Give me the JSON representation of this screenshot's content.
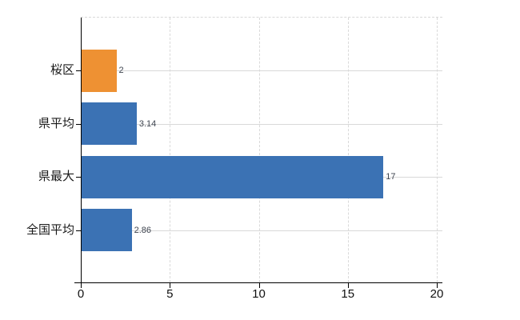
{
  "chart_data": {
    "type": "bar",
    "orientation": "horizontal",
    "title": "",
    "xlabel": "",
    "ylabel": "",
    "categories": [
      "桜区",
      "県平均",
      "県最大",
      "全国平均"
    ],
    "values": [
      2,
      3.14,
      17,
      2.86
    ],
    "value_labels": [
      "2",
      "3.14",
      "17",
      "2.86"
    ],
    "bar_colors": [
      "#ee9133",
      "#3b72b4",
      "#3b72b4",
      "#3b72b4"
    ],
    "xlim": [
      0,
      20
    ],
    "xticks": [
      0,
      5,
      10,
      15,
      20
    ],
    "xtick_labels": [
      "0",
      "5",
      "10",
      "15",
      "20"
    ],
    "grid": true,
    "legend_position": "none"
  },
  "colors": {
    "bar_orange": "#ee9133",
    "bar_blue": "#3b72b4",
    "gridline": "#d9d9d9",
    "axis": "#000000",
    "tick_label": "#111111",
    "category_label": "#1a1a1a",
    "value_label": "#3f4550",
    "background": "#ffffff"
  }
}
